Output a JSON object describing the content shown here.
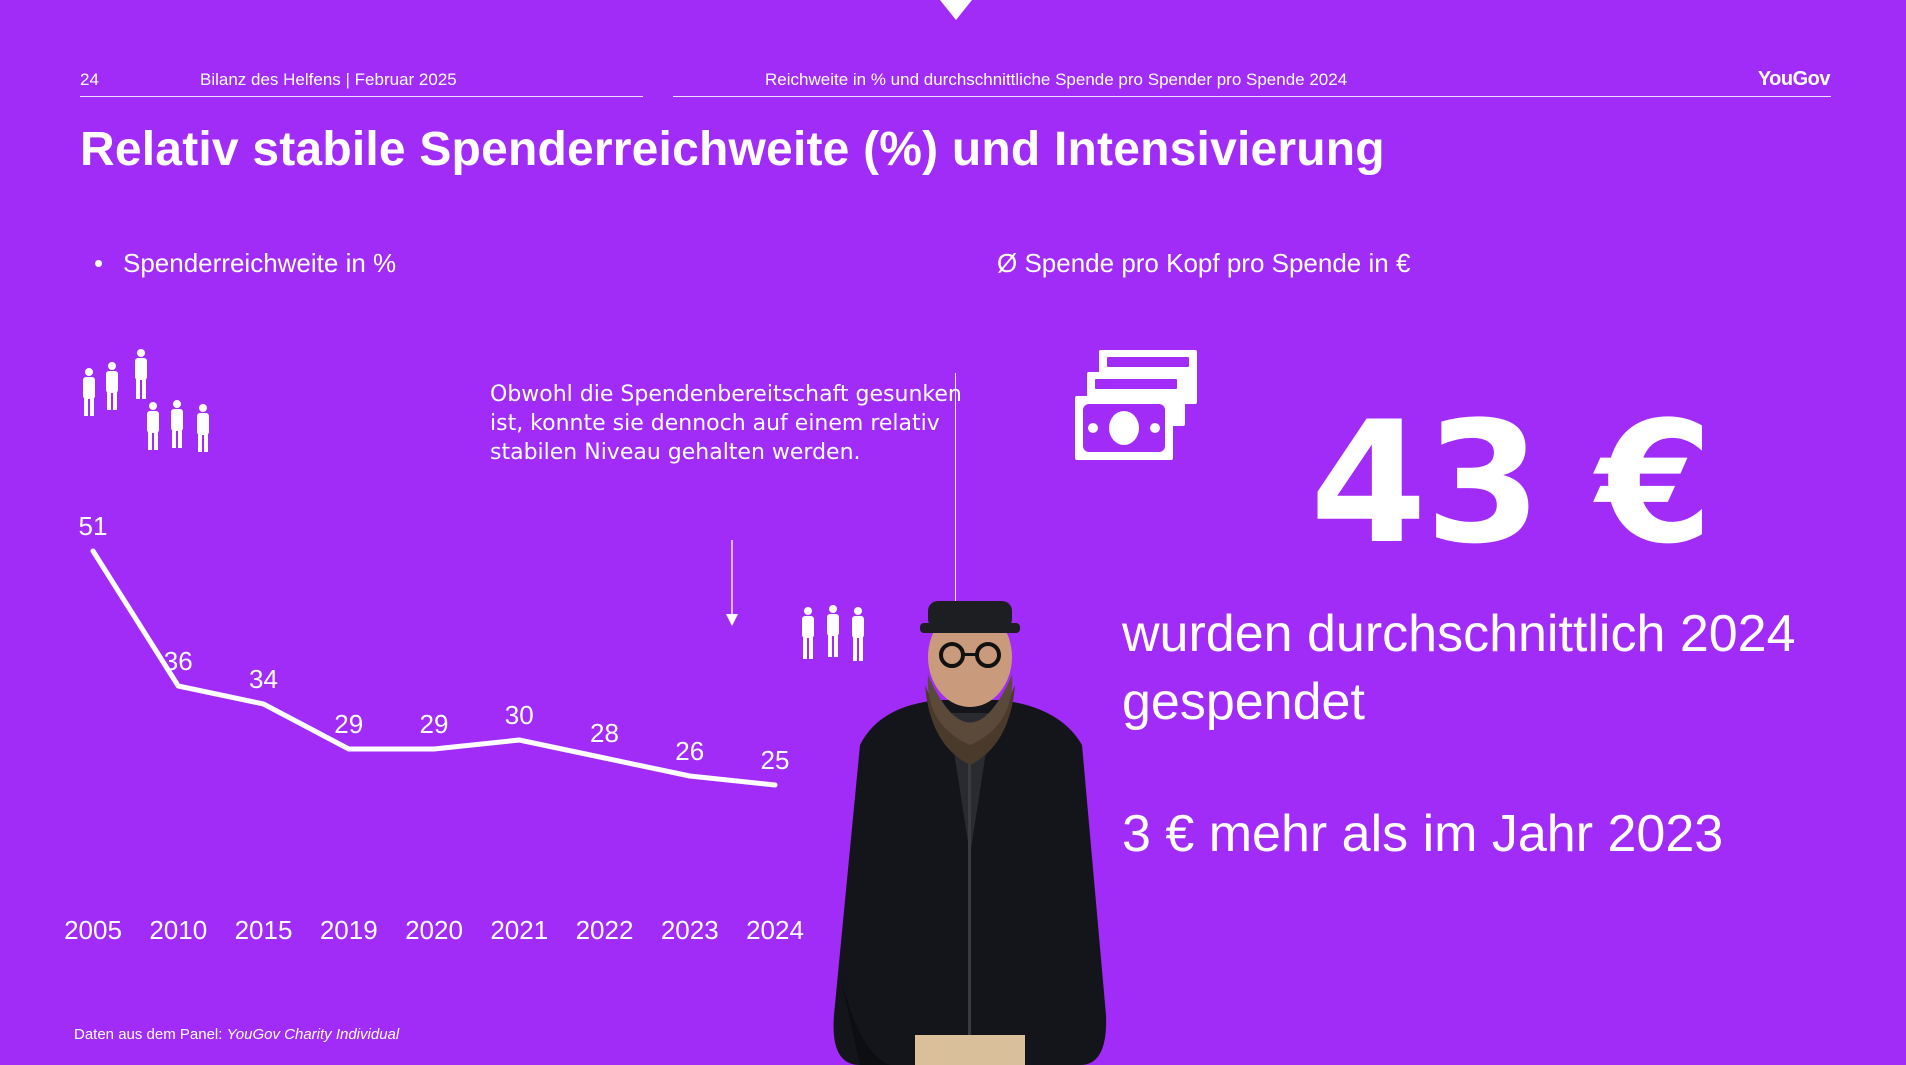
{
  "header": {
    "page_number": "24",
    "report": "Bilanz des Helfens | Februar 2025",
    "subject": "Reichweite in % und durchschnittliche Spende pro Spender pro Spende 2024",
    "brand": "YouGov"
  },
  "title": "Relativ stabile Spenderreichweite (%) und Intensivierung",
  "left_panel": {
    "bullet": "•",
    "heading": "Spenderreichweite in %",
    "annotation": "Obwohl die Spendenbereitschaft gesunken ist, konnte sie dennoch auf einem relativ stabilen Niveau gehalten werden."
  },
  "right_panel": {
    "heading": "Ø Spende pro Kopf pro Spende in €",
    "big_value": "43 €",
    "statement_1": "wurden durchschnittlich 2024 gespendet",
    "statement_2": "3 € mehr als im Jahr 2023"
  },
  "footnote": {
    "label": "Daten aus dem Panel:",
    "source": "YouGov Charity Individual"
  },
  "icons": [
    "people-group-icon",
    "money-bills-icon",
    "person-photo"
  ],
  "colors": {
    "background": "#a12bf7",
    "foreground": "#ffffff"
  },
  "chart_data": {
    "type": "line",
    "categories": [
      "2005",
      "2010",
      "2015",
      "2019",
      "2020",
      "2021",
      "2022",
      "2023",
      "2024"
    ],
    "series": [
      {
        "values": [
          51,
          36,
          34,
          29,
          29,
          30,
          28,
          26,
          25
        ]
      }
    ],
    "data_labels": [
      "51",
      "36",
      "34",
      "29",
      "29",
      "30",
      "28",
      "26",
      "25"
    ],
    "title": "",
    "xlabel": "",
    "ylabel": "",
    "ylim": [
      20,
      55
    ],
    "grid": false
  }
}
